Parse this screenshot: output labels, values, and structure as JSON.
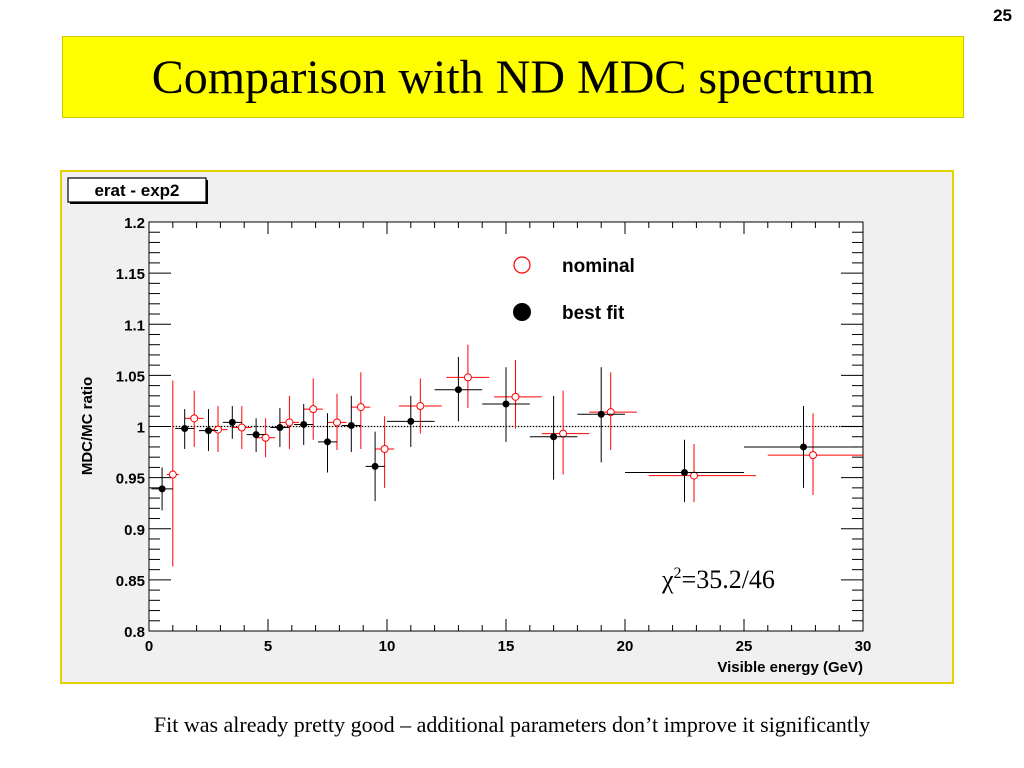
{
  "slide": {
    "page_number": "25",
    "title": "Comparison with ND MDC spectrum",
    "caption": "Fit was already pretty good – additional parameters don’t improve it significantly"
  },
  "colors": {
    "title_bg": "#ffff00",
    "frame_border": "#e5d000",
    "plot_bg": "#f0f0f0",
    "nominal": "#ff0000",
    "best_fit": "#000000"
  },
  "chart_data": {
    "type": "scatter",
    "title": "erat - exp2",
    "xlabel": "Visible energy (GeV)",
    "ylabel": "MDC/MC ratio",
    "xlim": [
      0,
      30
    ],
    "ylim": [
      0.8,
      1.2
    ],
    "x_ticks": [
      "0",
      "5",
      "10",
      "15",
      "20",
      "25",
      "30"
    ],
    "y_ticks": [
      "0.8",
      "0.85",
      "0.9",
      "0.95",
      "1",
      "1.05",
      "1.1",
      "1.15",
      "1.2"
    ],
    "reference_line": 1.0,
    "legend_position": "top-right",
    "annotation": {
      "chi": "χ",
      "sup": "2",
      "rest": "=35.2/46"
    },
    "series": [
      {
        "name": "nominal",
        "marker": "open-circle",
        "color": "#ff0000",
        "points": [
          {
            "x": 1.0,
            "xlo": 0.75,
            "xhi": 1.25,
            "y": 0.953,
            "ylo": 0.863,
            "yhi": 1.045
          },
          {
            "x": 1.9,
            "xlo": 1.5,
            "xhi": 2.3,
            "y": 1.008,
            "ylo": 0.98,
            "yhi": 1.035
          },
          {
            "x": 2.9,
            "xlo": 2.5,
            "xhi": 3.3,
            "y": 0.997,
            "ylo": 0.975,
            "yhi": 1.02
          },
          {
            "x": 3.9,
            "xlo": 3.5,
            "xhi": 4.3,
            "y": 0.999,
            "ylo": 0.978,
            "yhi": 1.02
          },
          {
            "x": 4.9,
            "xlo": 4.5,
            "xhi": 5.3,
            "y": 0.989,
            "ylo": 0.97,
            "yhi": 1.008
          },
          {
            "x": 5.9,
            "xlo": 5.5,
            "xhi": 6.3,
            "y": 1.004,
            "ylo": 0.978,
            "yhi": 1.03
          },
          {
            "x": 6.9,
            "xlo": 6.5,
            "xhi": 7.3,
            "y": 1.017,
            "ylo": 0.987,
            "yhi": 1.047
          },
          {
            "x": 7.9,
            "xlo": 7.5,
            "xhi": 8.3,
            "y": 1.004,
            "ylo": 0.977,
            "yhi": 1.032
          },
          {
            "x": 8.9,
            "xlo": 8.5,
            "xhi": 9.3,
            "y": 1.019,
            "ylo": 0.978,
            "yhi": 1.053
          },
          {
            "x": 9.9,
            "xlo": 9.5,
            "xhi": 10.3,
            "y": 0.978,
            "ylo": 0.94,
            "yhi": 1.01
          },
          {
            "x": 11.4,
            "xlo": 10.5,
            "xhi": 12.3,
            "y": 1.02,
            "ylo": 0.993,
            "yhi": 1.047
          },
          {
            "x": 13.4,
            "xlo": 12.5,
            "xhi": 14.3,
            "y": 1.048,
            "ylo": 1.018,
            "yhi": 1.08
          },
          {
            "x": 15.4,
            "xlo": 14.5,
            "xhi": 16.5,
            "y": 1.029,
            "ylo": 0.998,
            "yhi": 1.065
          },
          {
            "x": 17.4,
            "xlo": 16.5,
            "xhi": 18.5,
            "y": 0.993,
            "ylo": 0.953,
            "yhi": 1.035
          },
          {
            "x": 19.4,
            "xlo": 18.5,
            "xhi": 20.5,
            "y": 1.014,
            "ylo": 0.977,
            "yhi": 1.053
          },
          {
            "x": 22.9,
            "xlo": 21.0,
            "xhi": 25.5,
            "y": 0.952,
            "ylo": 0.926,
            "yhi": 0.983
          },
          {
            "x": 27.9,
            "xlo": 26.0,
            "xhi": 30.0,
            "y": 0.972,
            "ylo": 0.933,
            "yhi": 1.013
          }
        ]
      },
      {
        "name": "best fit",
        "marker": "filled-circle",
        "color": "#000000",
        "points": [
          {
            "x": 0.55,
            "xlo": 0.1,
            "xhi": 1.0,
            "y": 0.939,
            "ylo": 0.918,
            "yhi": 0.96
          },
          {
            "x": 1.5,
            "xlo": 1.1,
            "xhi": 1.9,
            "y": 0.998,
            "ylo": 0.978,
            "yhi": 1.017
          },
          {
            "x": 2.5,
            "xlo": 2.1,
            "xhi": 2.9,
            "y": 0.996,
            "ylo": 0.976,
            "yhi": 1.017
          },
          {
            "x": 3.5,
            "xlo": 3.1,
            "xhi": 3.9,
            "y": 1.004,
            "ylo": 0.988,
            "yhi": 1.02
          },
          {
            "x": 4.5,
            "xlo": 4.1,
            "xhi": 4.9,
            "y": 0.992,
            "ylo": 0.975,
            "yhi": 1.008
          },
          {
            "x": 5.5,
            "xlo": 5.1,
            "xhi": 5.9,
            "y": 0.999,
            "ylo": 0.98,
            "yhi": 1.018
          },
          {
            "x": 6.5,
            "xlo": 6.1,
            "xhi": 6.9,
            "y": 1.002,
            "ylo": 0.982,
            "yhi": 1.022
          },
          {
            "x": 7.5,
            "xlo": 7.1,
            "xhi": 7.9,
            "y": 0.985,
            "ylo": 0.955,
            "yhi": 1.013
          },
          {
            "x": 8.5,
            "xlo": 8.1,
            "xhi": 8.9,
            "y": 1.001,
            "ylo": 0.975,
            "yhi": 1.03
          },
          {
            "x": 9.5,
            "xlo": 9.1,
            "xhi": 9.9,
            "y": 0.961,
            "ylo": 0.927,
            "yhi": 0.995
          },
          {
            "x": 11.0,
            "xlo": 10.0,
            "xhi": 12.0,
            "y": 1.005,
            "ylo": 0.98,
            "yhi": 1.03
          },
          {
            "x": 13.0,
            "xlo": 12.0,
            "xhi": 14.0,
            "y": 1.036,
            "ylo": 1.005,
            "yhi": 1.068
          },
          {
            "x": 15.0,
            "xlo": 14.0,
            "xhi": 16.0,
            "y": 1.022,
            "ylo": 0.985,
            "yhi": 1.058
          },
          {
            "x": 17.0,
            "xlo": 16.0,
            "xhi": 18.0,
            "y": 0.99,
            "ylo": 0.948,
            "yhi": 1.03
          },
          {
            "x": 19.0,
            "xlo": 18.0,
            "xhi": 20.0,
            "y": 1.012,
            "ylo": 0.965,
            "yhi": 1.058
          },
          {
            "x": 22.5,
            "xlo": 20.0,
            "xhi": 25.0,
            "y": 0.955,
            "ylo": 0.926,
            "yhi": 0.987
          },
          {
            "x": 27.5,
            "xlo": 25.0,
            "xhi": 29.8,
            "y": 0.98,
            "ylo": 0.94,
            "yhi": 1.02
          }
        ]
      }
    ]
  }
}
